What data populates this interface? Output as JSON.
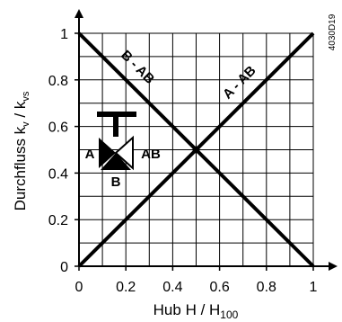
{
  "chart_data": {
    "type": "line",
    "x": [
      0,
      1
    ],
    "xlim": [
      0,
      1
    ],
    "ylim": [
      0,
      1
    ],
    "series": [
      {
        "name": "A - AB",
        "x": [
          0,
          1
        ],
        "values": [
          0,
          1
        ]
      },
      {
        "name": "B - AB",
        "x": [
          0,
          1
        ],
        "values": [
          1,
          0
        ]
      }
    ],
    "x_ticks": [
      "0",
      "0.2",
      "0.4",
      "0.6",
      "0.8",
      "1"
    ],
    "y_ticks": [
      "0",
      "0.2",
      "0.4",
      "0.6",
      "0.8",
      "1"
    ],
    "x_minor_step": 0.1,
    "y_minor_step": 0.1,
    "xlabel": {
      "main": "Hub H / H",
      "sub": "100"
    },
    "ylabel": {
      "k1": "k",
      "s1": "v",
      "mid": " / k",
      "s2": "vs",
      "prefix": "Durchfluss "
    },
    "grid": true,
    "doc_code": "4030D19",
    "valve_labels": {
      "a": "A",
      "ab": "AB",
      "b": "B"
    }
  }
}
